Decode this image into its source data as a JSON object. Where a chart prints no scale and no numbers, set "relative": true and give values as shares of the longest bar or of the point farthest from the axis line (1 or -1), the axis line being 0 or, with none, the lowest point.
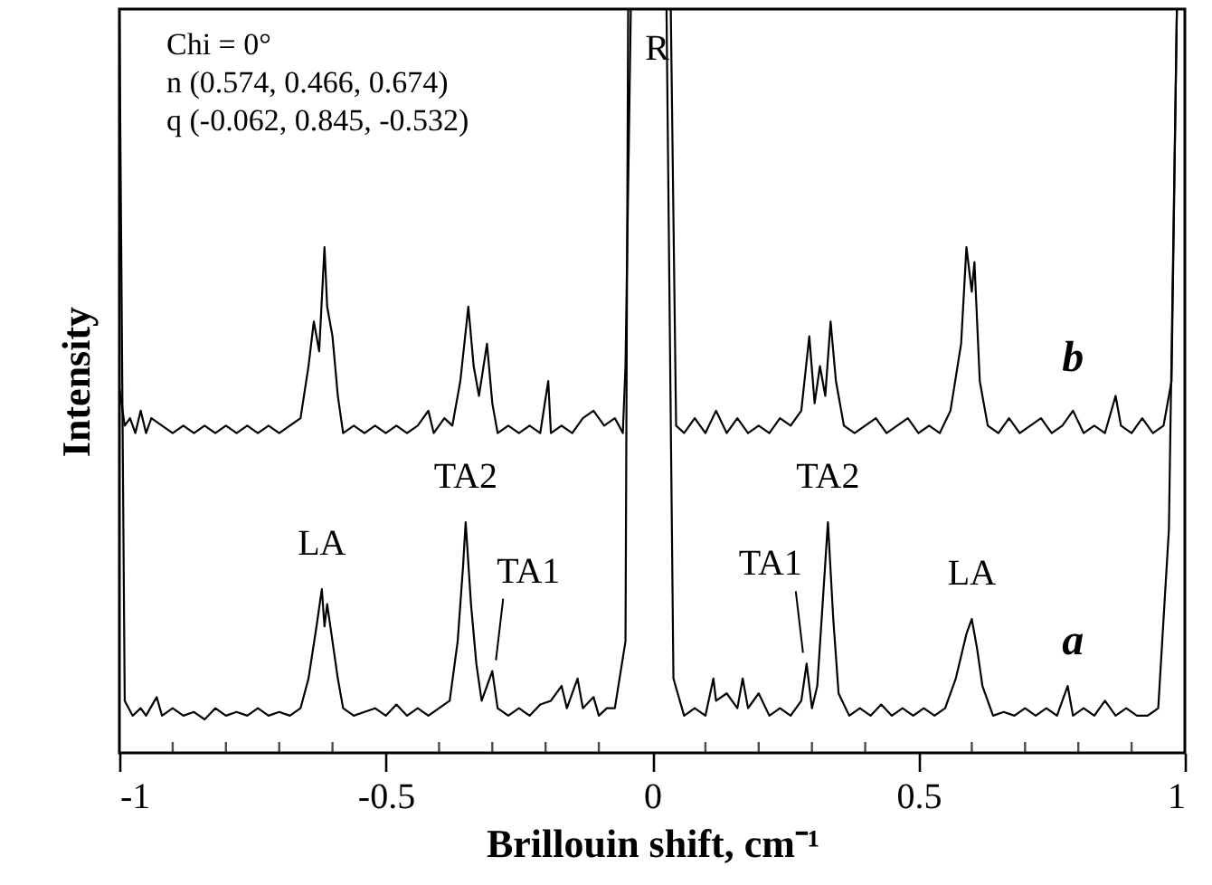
{
  "chart_data": {
    "type": "line",
    "relative": true,
    "xlabel": "Brillouin shift, cm⁻¹",
    "ylabel": "Intensity",
    "xlim": [
      -1,
      1
    ],
    "xticks": [
      -1,
      {
        "value": -0.9,
        "label": null
      },
      {
        "value": -0.8,
        "label": null
      },
      {
        "value": -0.7,
        "label": null
      },
      {
        "value": -0.6,
        "label": null
      },
      -0.5,
      {
        "value": -0.4,
        "label": null
      },
      {
        "value": -0.3,
        "label": null
      },
      {
        "value": -0.2,
        "label": null
      },
      {
        "value": -0.1,
        "label": null
      },
      0,
      {
        "value": 0.1,
        "label": null
      },
      {
        "value": 0.2,
        "label": null
      },
      {
        "value": 0.3,
        "label": null
      },
      {
        "value": 0.4,
        "label": null
      },
      0.5,
      {
        "value": 0.6,
        "label": null
      },
      {
        "value": 0.7,
        "label": null
      },
      {
        "value": 0.8,
        "label": null
      },
      {
        "value": 0.9,
        "label": null
      },
      1
    ],
    "grid": false,
    "marker": "none",
    "line_style": "solid",
    "series": [
      {
        "name": "a",
        "color": "#000000",
        "x": [
          -1,
          -0.99,
          -0.975,
          -0.96,
          -0.95,
          -0.93,
          -0.92,
          -0.9,
          -0.88,
          -0.86,
          -0.84,
          -0.82,
          -0.8,
          -0.78,
          -0.76,
          -0.74,
          -0.72,
          -0.7,
          -0.68,
          -0.66,
          -0.645,
          -0.63,
          -0.62,
          -0.615,
          -0.61,
          -0.6,
          -0.59,
          -0.58,
          -0.56,
          -0.54,
          -0.52,
          -0.5,
          -0.48,
          -0.46,
          -0.44,
          -0.42,
          -0.4,
          -0.38,
          -0.365,
          -0.355,
          -0.35,
          -0.34,
          -0.33,
          -0.32,
          -0.31,
          -0.3,
          -0.29,
          -0.27,
          -0.25,
          -0.23,
          -0.21,
          -0.19,
          -0.17,
          -0.16,
          -0.14,
          -0.13,
          -0.11,
          -0.1,
          -0.085,
          -0.07,
          -0.05,
          -0.045,
          0,
          0.027,
          0.04,
          0.06,
          0.08,
          0.1,
          0.115,
          0.12,
          0.14,
          0.16,
          0.17,
          0.18,
          0.2,
          0.22,
          0.24,
          0.26,
          0.28,
          0.29,
          0.3,
          0.31,
          0.32,
          0.33,
          0.34,
          0.35,
          0.37,
          0.39,
          0.41,
          0.43,
          0.45,
          0.47,
          0.49,
          0.51,
          0.53,
          0.55,
          0.57,
          0.59,
          0.6,
          0.61,
          0.62,
          0.64,
          0.66,
          0.68,
          0.7,
          0.72,
          0.74,
          0.76,
          0.78,
          0.79,
          0.81,
          0.83,
          0.85,
          0.87,
          0.89,
          0.91,
          0.93,
          0.95,
          0.97,
          0.985
        ],
        "values": [
          1,
          0.07,
          0.05,
          0.06,
          0.05,
          0.075,
          0.05,
          0.06,
          0.05,
          0.055,
          0.045,
          0.06,
          0.05,
          0.055,
          0.05,
          0.06,
          0.05,
          0.055,
          0.05,
          0.06,
          0.1,
          0.17,
          0.22,
          0.17,
          0.2,
          0.15,
          0.1,
          0.06,
          0.05,
          0.055,
          0.06,
          0.05,
          0.065,
          0.05,
          0.06,
          0.05,
          0.06,
          0.07,
          0.15,
          0.25,
          0.31,
          0.2,
          0.12,
          0.07,
          0.09,
          0.11,
          0.06,
          0.05,
          0.06,
          0.05,
          0.065,
          0.07,
          0.09,
          0.06,
          0.1,
          0.06,
          0.075,
          0.05,
          0.06,
          0.06,
          0.15,
          1,
          null,
          1,
          0.1,
          0.05,
          0.06,
          0.05,
          0.1,
          0.07,
          0.08,
          0.06,
          0.1,
          0.06,
          0.08,
          0.05,
          0.06,
          0.05,
          0.07,
          0.12,
          0.06,
          0.09,
          0.2,
          0.31,
          0.18,
          0.08,
          0.05,
          0.06,
          0.05,
          0.065,
          0.05,
          0.06,
          0.05,
          0.06,
          0.05,
          0.06,
          0.1,
          0.16,
          0.18,
          0.14,
          0.09,
          0.05,
          0.055,
          0.05,
          0.06,
          0.05,
          0.06,
          0.05,
          0.09,
          0.05,
          0.06,
          0.05,
          0.07,
          0.05,
          0.06,
          0.05,
          0.05,
          0.06,
          0.3,
          1
        ]
      },
      {
        "name": "b",
        "color": "#000000",
        "x": [
          -1,
          -0.99,
          -0.98,
          -0.97,
          -0.96,
          -0.95,
          -0.94,
          -0.92,
          -0.9,
          -0.88,
          -0.86,
          -0.84,
          -0.82,
          -0.8,
          -0.78,
          -0.76,
          -0.74,
          -0.72,
          -0.7,
          -0.68,
          -0.66,
          -0.645,
          -0.635,
          -0.625,
          -0.615,
          -0.61,
          -0.6,
          -0.59,
          -0.58,
          -0.56,
          -0.54,
          -0.52,
          -0.5,
          -0.48,
          -0.46,
          -0.44,
          -0.42,
          -0.41,
          -0.39,
          -0.375,
          -0.36,
          -0.345,
          -0.335,
          -0.325,
          -0.31,
          -0.3,
          -0.29,
          -0.27,
          -0.25,
          -0.23,
          -0.21,
          -0.195,
          -0.19,
          -0.17,
          -0.15,
          -0.13,
          -0.11,
          -0.09,
          -0.07,
          -0.055,
          -0.05,
          -0.04,
          0,
          0.035,
          0.045,
          0.06,
          0.08,
          0.1,
          0.12,
          0.14,
          0.16,
          0.18,
          0.2,
          0.22,
          0.24,
          0.26,
          0.28,
          0.295,
          0.305,
          0.315,
          0.325,
          0.335,
          0.345,
          0.36,
          0.38,
          0.4,
          0.42,
          0.44,
          0.46,
          0.48,
          0.5,
          0.52,
          0.54,
          0.56,
          0.58,
          0.59,
          0.6,
          0.605,
          0.615,
          0.63,
          0.65,
          0.67,
          0.69,
          0.71,
          0.73,
          0.75,
          0.77,
          0.79,
          0.81,
          0.83,
          0.85,
          0.87,
          0.88,
          0.9,
          0.92,
          0.94,
          0.96,
          0.975,
          0.985
        ],
        "values": [
          0.49,
          0.44,
          0.45,
          0.43,
          0.46,
          0.43,
          0.45,
          0.44,
          0.43,
          0.44,
          0.43,
          0.44,
          0.43,
          0.44,
          0.43,
          0.44,
          0.43,
          0.44,
          0.43,
          0.44,
          0.45,
          0.52,
          0.58,
          0.54,
          0.68,
          0.6,
          0.56,
          0.48,
          0.43,
          0.44,
          0.43,
          0.44,
          0.43,
          0.44,
          0.43,
          0.44,
          0.46,
          0.43,
          0.45,
          0.44,
          0.5,
          0.6,
          0.52,
          0.48,
          0.55,
          0.47,
          0.43,
          0.44,
          0.43,
          0.44,
          0.43,
          0.5,
          0.43,
          0.44,
          0.43,
          0.45,
          0.46,
          0.44,
          0.45,
          0.43,
          0.52,
          1,
          null,
          1,
          0.44,
          0.43,
          0.45,
          0.43,
          0.46,
          0.43,
          0.45,
          0.43,
          0.44,
          0.43,
          0.45,
          0.44,
          0.46,
          0.56,
          0.47,
          0.52,
          0.48,
          0.58,
          0.5,
          0.44,
          0.43,
          0.44,
          0.45,
          0.43,
          0.44,
          0.45,
          0.43,
          0.44,
          0.43,
          0.46,
          0.55,
          0.68,
          0.62,
          0.66,
          0.5,
          0.44,
          0.43,
          0.45,
          0.43,
          0.44,
          0.45,
          0.43,
          0.44,
          0.46,
          0.43,
          0.44,
          0.43,
          0.48,
          0.44,
          0.43,
          0.45,
          0.43,
          0.44,
          0.5,
          1
        ]
      }
    ],
    "annotations": [
      "Chi = 0°",
      "n (0.574, 0.466, 0.674)",
      "q (-0.062, 0.845, -0.532)",
      {
        "text": "R",
        "x": -0.045,
        "y": 1
      },
      {
        "text": "LA",
        "x": -0.62,
        "y": 0.22
      },
      {
        "text": "TA2",
        "x": -0.35,
        "y": 0.31
      },
      {
        "text": "TA1",
        "x": -0.3,
        "y": 0.11
      },
      {
        "text": "TA1",
        "x": 0.29,
        "y": 0.12
      },
      {
        "text": "TA2",
        "x": 0.33,
        "y": 0.31
      },
      {
        "text": "LA",
        "x": 0.6,
        "y": 0.18
      }
    ]
  }
}
